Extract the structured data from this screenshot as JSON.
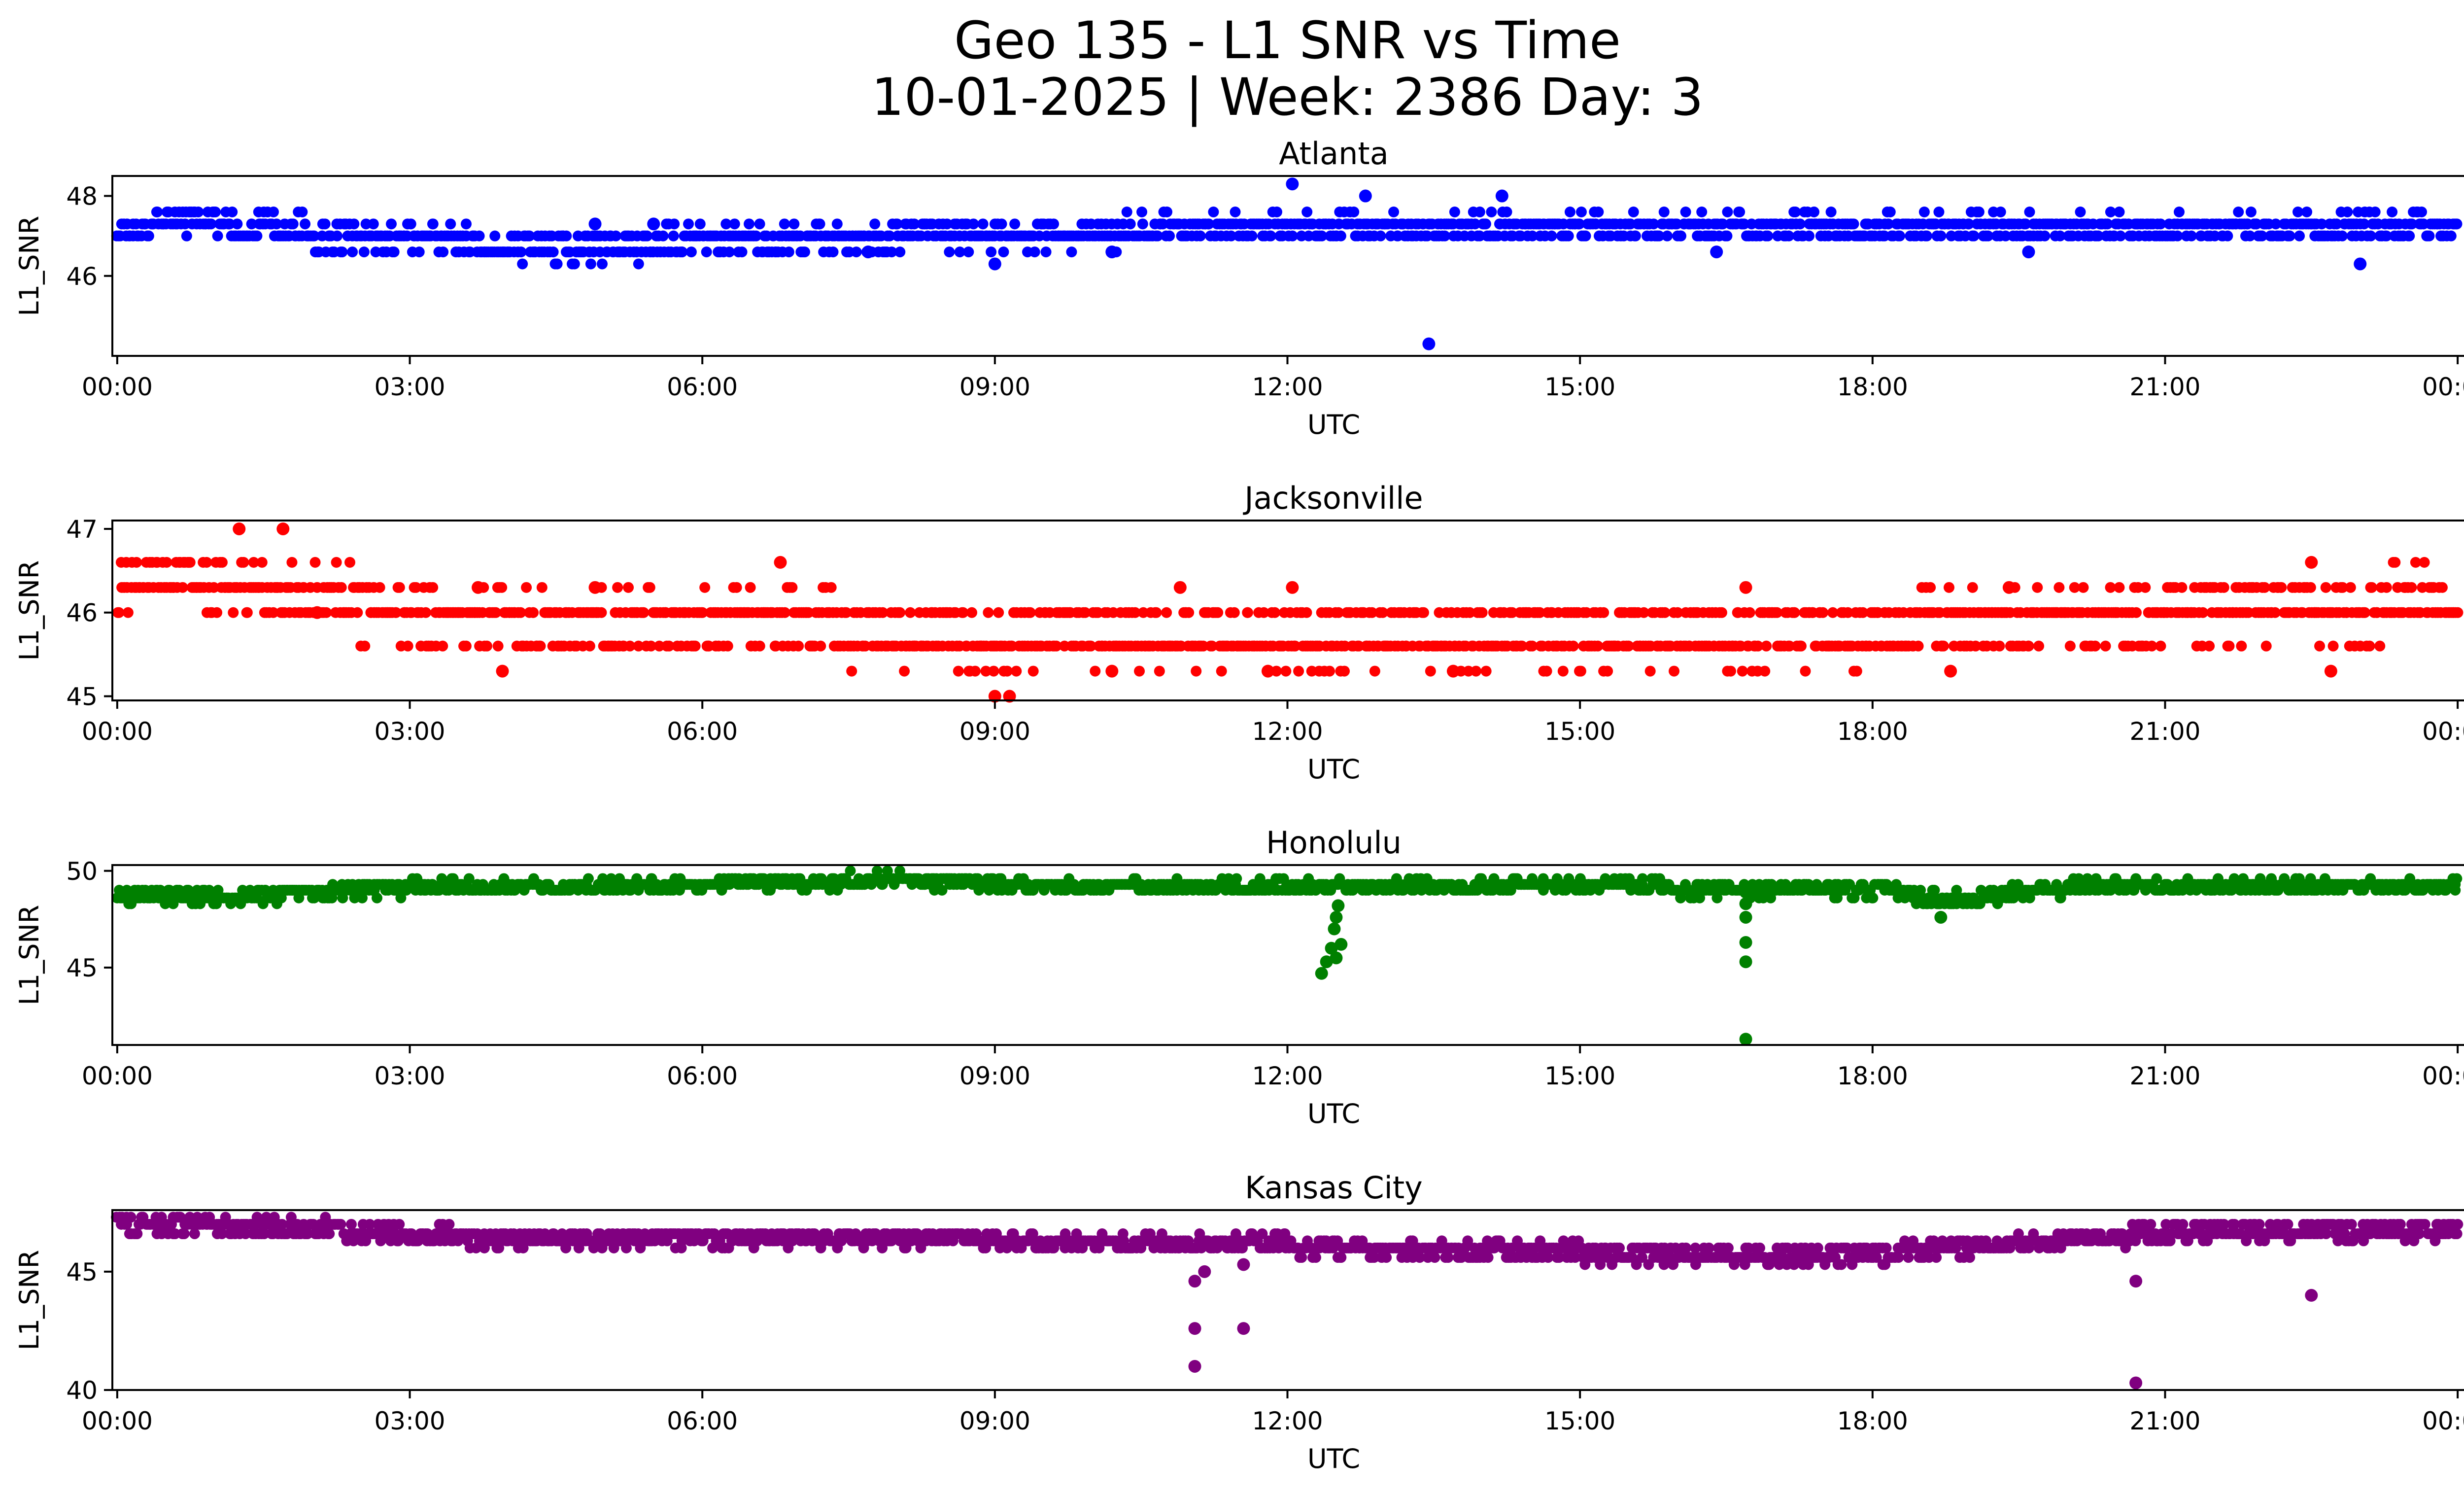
{
  "figure": {
    "title_line1": "Geo 135 - L1 SNR vs Time",
    "title_line2": "10-01-2025 | Week: 2386 Day: 3",
    "background": "#ffffff"
  },
  "chart_data": [
    {
      "type": "scatter",
      "title": "Atlanta",
      "xlabel": "UTC",
      "ylabel": "L1_SNR",
      "color": "#0000ff",
      "x_unit": "hours since 00:00 UTC",
      "xlim": [
        -0.05,
        25.0
      ],
      "ylim": [
        44.0,
        48.5
      ],
      "xticks": [
        0,
        3,
        6,
        9,
        12,
        15,
        18,
        21,
        24
      ],
      "xtick_labels": [
        "00:00",
        "03:00",
        "06:00",
        "09:00",
        "12:00",
        "15:00",
        "18:00",
        "21:00",
        "00:00"
      ],
      "yticks": [
        46,
        48
      ],
      "ytick_labels": [
        "46",
        "48"
      ],
      "grid": false,
      "levels": [
        46.3,
        46.6,
        47.0,
        47.3,
        47.6
      ],
      "baseline": [
        [
          0,
          47.2
        ],
        [
          0.8,
          47.4
        ],
        [
          2.0,
          47.1
        ],
        [
          2.8,
          46.9
        ],
        [
          4.5,
          46.7
        ],
        [
          6.6,
          46.9
        ],
        [
          9.5,
          47.0
        ],
        [
          11.0,
          47.2
        ],
        [
          14.5,
          47.3
        ],
        [
          17.0,
          47.2
        ],
        [
          19.0,
          47.3
        ],
        [
          22.5,
          47.2
        ],
        [
          24.0,
          47.2
        ]
      ],
      "outliers": [
        [
          12.05,
          48.3
        ],
        [
          12.8,
          48.0
        ],
        [
          14.2,
          48.0
        ],
        [
          13.45,
          44.3
        ],
        [
          9.0,
          46.3
        ],
        [
          23.0,
          46.3
        ],
        [
          16.4,
          46.6
        ],
        [
          19.6,
          46.6
        ],
        [
          7.7,
          46.6
        ],
        [
          10.2,
          46.6
        ],
        [
          5.5,
          47.3
        ],
        [
          4.9,
          47.3
        ]
      ],
      "density": [
        [
          0,
          130
        ],
        [
          24,
          130
        ]
      ]
    },
    {
      "type": "scatter",
      "title": "Jacksonville",
      "xlabel": "UTC",
      "ylabel": "L1_SNR",
      "color": "#ff0000",
      "x_unit": "hours since 00:00 UTC",
      "xlim": [
        -0.05,
        25.0
      ],
      "ylim": [
        44.95,
        47.1
      ],
      "xticks": [
        0,
        3,
        6,
        9,
        12,
        15,
        18,
        21,
        24
      ],
      "xtick_labels": [
        "00:00",
        "03:00",
        "06:00",
        "09:00",
        "12:00",
        "15:00",
        "18:00",
        "21:00",
        "00:00"
      ],
      "yticks": [
        45,
        46,
        47
      ],
      "ytick_labels": [
        "45",
        "46",
        "47"
      ],
      "grid": false,
      "levels": [
        45.0,
        45.3,
        45.6,
        46.0,
        46.3,
        46.6
      ],
      "baseline": [
        [
          0,
          46.15
        ],
        [
          0.3,
          46.45
        ],
        [
          2.2,
          46.2
        ],
        [
          2.8,
          45.9
        ],
        [
          6.0,
          45.95
        ],
        [
          8.3,
          45.7
        ],
        [
          9.3,
          45.8
        ],
        [
          12.0,
          45.8
        ],
        [
          16.0,
          45.8
        ],
        [
          18.0,
          45.8
        ],
        [
          21.0,
          45.95
        ],
        [
          24.0,
          46.15
        ]
      ],
      "outliers": [
        [
          1.25,
          47.0
        ],
        [
          1.7,
          47.0
        ],
        [
          6.8,
          46.6
        ],
        [
          9.0,
          45.0
        ],
        [
          9.15,
          45.0
        ],
        [
          3.95,
          45.3
        ],
        [
          10.2,
          45.3
        ],
        [
          11.8,
          45.3
        ],
        [
          13.7,
          45.3
        ],
        [
          18.8,
          45.3
        ],
        [
          22.7,
          45.3
        ],
        [
          22.5,
          46.6
        ],
        [
          3.7,
          46.3
        ],
        [
          12.05,
          46.3
        ],
        [
          10.9,
          46.3
        ],
        [
          4.9,
          46.3
        ],
        [
          16.7,
          46.3
        ],
        [
          19.4,
          46.3
        ],
        [
          2.05,
          46.0
        ]
      ],
      "density": [
        [
          0,
          110
        ],
        [
          24,
          110
        ]
      ]
    },
    {
      "type": "scatter",
      "title": "Honolulu",
      "xlabel": "UTC",
      "ylabel": "L1_SNR",
      "color": "#008000",
      "x_unit": "hours since 00:00 UTC",
      "xlim": [
        -0.05,
        25.0
      ],
      "ylim": [
        41.0,
        50.3
      ],
      "xticks": [
        0,
        3,
        6,
        9,
        12,
        15,
        18,
        21,
        24
      ],
      "xtick_labels": [
        "00:00",
        "03:00",
        "06:00",
        "09:00",
        "12:00",
        "15:00",
        "18:00",
        "21:00",
        "00:00"
      ],
      "yticks": [
        45,
        50
      ],
      "ytick_labels": [
        "45",
        "50"
      ],
      "grid": false,
      "levels": [
        48.3,
        48.6,
        49.0,
        49.3,
        49.6,
        50.0
      ],
      "baseline": [
        [
          0,
          48.8
        ],
        [
          1.0,
          48.6
        ],
        [
          2.0,
          48.9
        ],
        [
          3.0,
          49.1
        ],
        [
          5.0,
          49.2
        ],
        [
          7.0,
          49.4
        ],
        [
          8.0,
          49.6
        ],
        [
          9.0,
          49.3
        ],
        [
          12.0,
          49.1
        ],
        [
          14.0,
          49.3
        ],
        [
          16.0,
          49.1
        ],
        [
          18.3,
          49.0
        ],
        [
          18.7,
          48.0
        ],
        [
          19.2,
          48.7
        ],
        [
          20.0,
          49.1
        ],
        [
          21.0,
          49.3
        ],
        [
          24.0,
          49.2
        ]
      ],
      "outliers": [
        [
          12.35,
          44.7
        ],
        [
          12.4,
          45.3
        ],
        [
          12.45,
          46.0
        ],
        [
          12.5,
          45.5
        ],
        [
          12.55,
          46.2
        ],
        [
          12.48,
          47.0
        ],
        [
          12.5,
          47.6
        ],
        [
          12.52,
          48.2
        ],
        [
          16.7,
          41.3
        ],
        [
          16.7,
          45.3
        ],
        [
          16.7,
          46.3
        ],
        [
          16.7,
          47.6
        ],
        [
          16.7,
          48.3
        ],
        [
          16.7,
          48.9
        ],
        [
          18.7,
          47.6
        ]
      ],
      "density": [
        [
          0,
          130
        ],
        [
          24,
          130
        ]
      ]
    },
    {
      "type": "scatter",
      "title": "Kansas City",
      "xlabel": "UTC",
      "ylabel": "L1_SNR",
      "color": "#800080",
      "x_unit": "hours since 00:00 UTC",
      "xlim": [
        -0.05,
        25.0
      ],
      "ylim": [
        40.0,
        47.6
      ],
      "xticks": [
        0,
        3,
        6,
        9,
        12,
        15,
        18,
        21,
        24
      ],
      "xtick_labels": [
        "00:00",
        "03:00",
        "06:00",
        "09:00",
        "12:00",
        "15:00",
        "18:00",
        "21:00",
        "00:00"
      ],
      "yticks": [
        40,
        45
      ],
      "ytick_labels": [
        "40",
        "45"
      ],
      "grid": false,
      "levels": [
        45.3,
        45.6,
        46.0,
        46.3,
        46.6,
        47.0,
        47.3
      ],
      "baseline": [
        [
          0,
          47.0
        ],
        [
          2.0,
          46.9
        ],
        [
          2.6,
          46.7
        ],
        [
          4.0,
          46.4
        ],
        [
          7.0,
          46.5
        ],
        [
          9.0,
          46.3
        ],
        [
          11.0,
          46.3
        ],
        [
          12.5,
          46.0
        ],
        [
          13.0,
          45.9
        ],
        [
          15.0,
          45.8
        ],
        [
          18.0,
          45.7
        ],
        [
          18.7,
          46.0
        ],
        [
          20.0,
          46.3
        ],
        [
          21.2,
          46.7
        ],
        [
          22.0,
          46.8
        ],
        [
          24.0,
          46.8
        ]
      ],
      "outliers": [
        [
          11.05,
          41.0
        ],
        [
          11.05,
          42.6
        ],
        [
          11.05,
          44.6
        ],
        [
          11.15,
          45.0
        ],
        [
          11.55,
          42.6
        ],
        [
          11.55,
          45.3
        ],
        [
          20.7,
          40.3
        ],
        [
          20.7,
          44.6
        ],
        [
          22.5,
          44.0
        ]
      ],
      "density": [
        [
          0,
          130
        ],
        [
          24,
          130
        ]
      ]
    }
  ]
}
